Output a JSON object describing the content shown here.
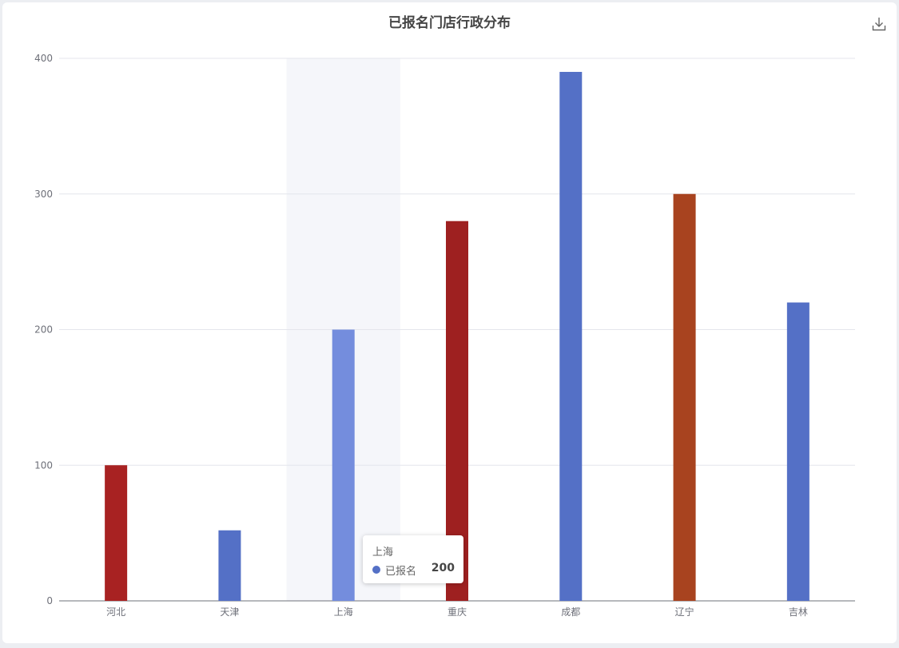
{
  "title": "已报名门店行政分布",
  "toolbar": {
    "download_icon": "download-icon"
  },
  "chart_data": {
    "type": "bar",
    "categories": [
      "河北",
      "天津",
      "上海",
      "重庆",
      "成都",
      "辽宁",
      "吉林"
    ],
    "values": [
      100,
      52,
      200,
      280,
      390,
      300,
      220
    ],
    "colors": [
      "#a82222",
      "#5470c6",
      "#5470c6",
      "#9e2020",
      "#5470c6",
      "#a8431f",
      "#5470c6"
    ],
    "highlight_color": "#748ddd",
    "highlighted_index": 2,
    "ylim": [
      0,
      400
    ],
    "yticks": [
      0,
      100,
      200,
      300,
      400
    ],
    "grid": true,
    "series": [
      {
        "name": "已报名",
        "values": [
          100,
          52,
          200,
          280,
          390,
          300,
          220
        ]
      }
    ]
  },
  "tooltip": {
    "title": "上海",
    "series_name": "已报名",
    "value": "200",
    "dot_color": "#5470c6"
  }
}
